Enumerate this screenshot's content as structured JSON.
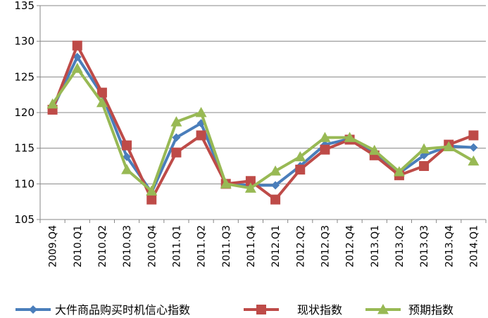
{
  "chart_data": {
    "type": "line",
    "title": "",
    "xlabel": "",
    "ylabel": "",
    "ylim": [
      105,
      135
    ],
    "yticks": [
      105,
      110,
      115,
      120,
      125,
      130,
      135
    ],
    "grid": "horizontal",
    "legend_position": "bottom",
    "categories": [
      "2009.Q4",
      "2010.Q1",
      "2010.Q2",
      "2010.Q3",
      "2010.Q4",
      "2011.Q1",
      "2011.Q2",
      "2011.Q3",
      "2011.Q4",
      "2012.Q1",
      "2012.Q2",
      "2012.Q3",
      "2012.Q4",
      "2013.Q1",
      "2013.Q2",
      "2013.Q3",
      "2013.Q4",
      "2014.Q1"
    ],
    "series": [
      {
        "name": "大件商品购买时机信心指数",
        "color": "#4a7ebb",
        "marker": "diamond",
        "values": [
          120.5,
          127.8,
          122.5,
          113.8,
          108.8,
          116.5,
          118.5,
          110.0,
          109.8,
          109.8,
          112.5,
          115.5,
          116.3,
          114.3,
          111.5,
          114.0,
          115.3,
          115.1
        ]
      },
      {
        "name": "现状指数",
        "color": "#be4b48",
        "marker": "square",
        "values": [
          120.4,
          129.4,
          122.8,
          115.4,
          107.8,
          114.4,
          116.8,
          110.0,
          110.4,
          107.8,
          112.0,
          114.8,
          116.2,
          114.0,
          111.2,
          112.5,
          115.5,
          116.8
        ]
      },
      {
        "name": "预期指数",
        "color": "#98b954",
        "marker": "triangle",
        "values": [
          121.2,
          126.2,
          121.4,
          112.0,
          109.0,
          118.7,
          120.0,
          110.0,
          109.4,
          111.8,
          113.8,
          116.5,
          116.5,
          114.7,
          111.7,
          114.9,
          115.2,
          113.2
        ]
      }
    ]
  }
}
